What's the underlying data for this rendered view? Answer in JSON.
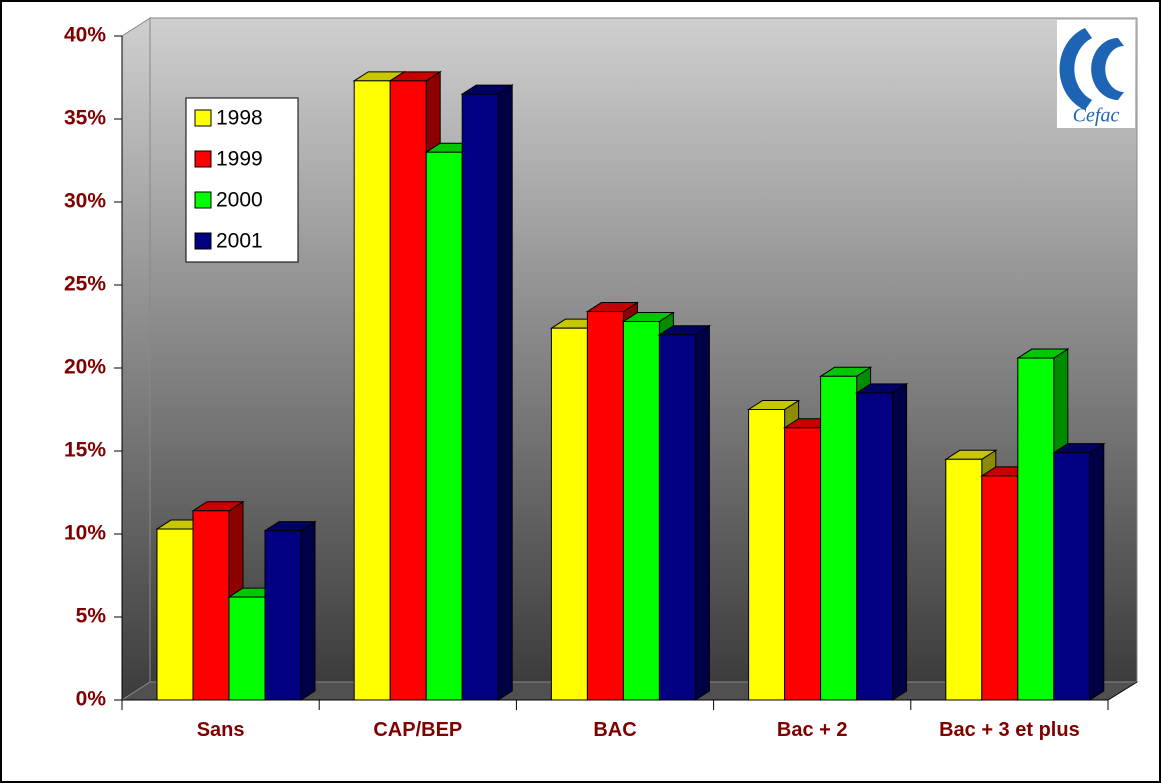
{
  "chart_data": {
    "type": "bar3d",
    "categories": [
      "Sans",
      "CAP/BEP",
      "BAC",
      "Bac + 2",
      "Bac + 3 et plus"
    ],
    "series": [
      {
        "name": "1998",
        "color": "#ffff00",
        "values": [
          10.3,
          37.3,
          22.4,
          17.5,
          14.5
        ]
      },
      {
        "name": "1999",
        "color": "#ff0000",
        "values": [
          11.4,
          37.3,
          23.4,
          16.4,
          13.5
        ]
      },
      {
        "name": "2000",
        "color": "#00ff00",
        "values": [
          6.2,
          33.0,
          22.8,
          19.5,
          20.6
        ]
      },
      {
        "name": "2001",
        "color": "#000080",
        "values": [
          10.2,
          36.5,
          22.0,
          18.5,
          14.9
        ]
      }
    ],
    "ylim": [
      0,
      40
    ],
    "yticks": [
      {
        "value": 0,
        "label": "0%"
      },
      {
        "value": 5,
        "label": "5%"
      },
      {
        "value": 10,
        "label": "10%"
      },
      {
        "value": 15,
        "label": "15%"
      },
      {
        "value": 20,
        "label": "20%"
      },
      {
        "value": 25,
        "label": "25%"
      },
      {
        "value": 30,
        "label": "30%"
      },
      {
        "value": 35,
        "label": "35%"
      },
      {
        "value": 40,
        "label": "40%"
      }
    ],
    "legend": "upper left",
    "logo": "Cefac"
  }
}
